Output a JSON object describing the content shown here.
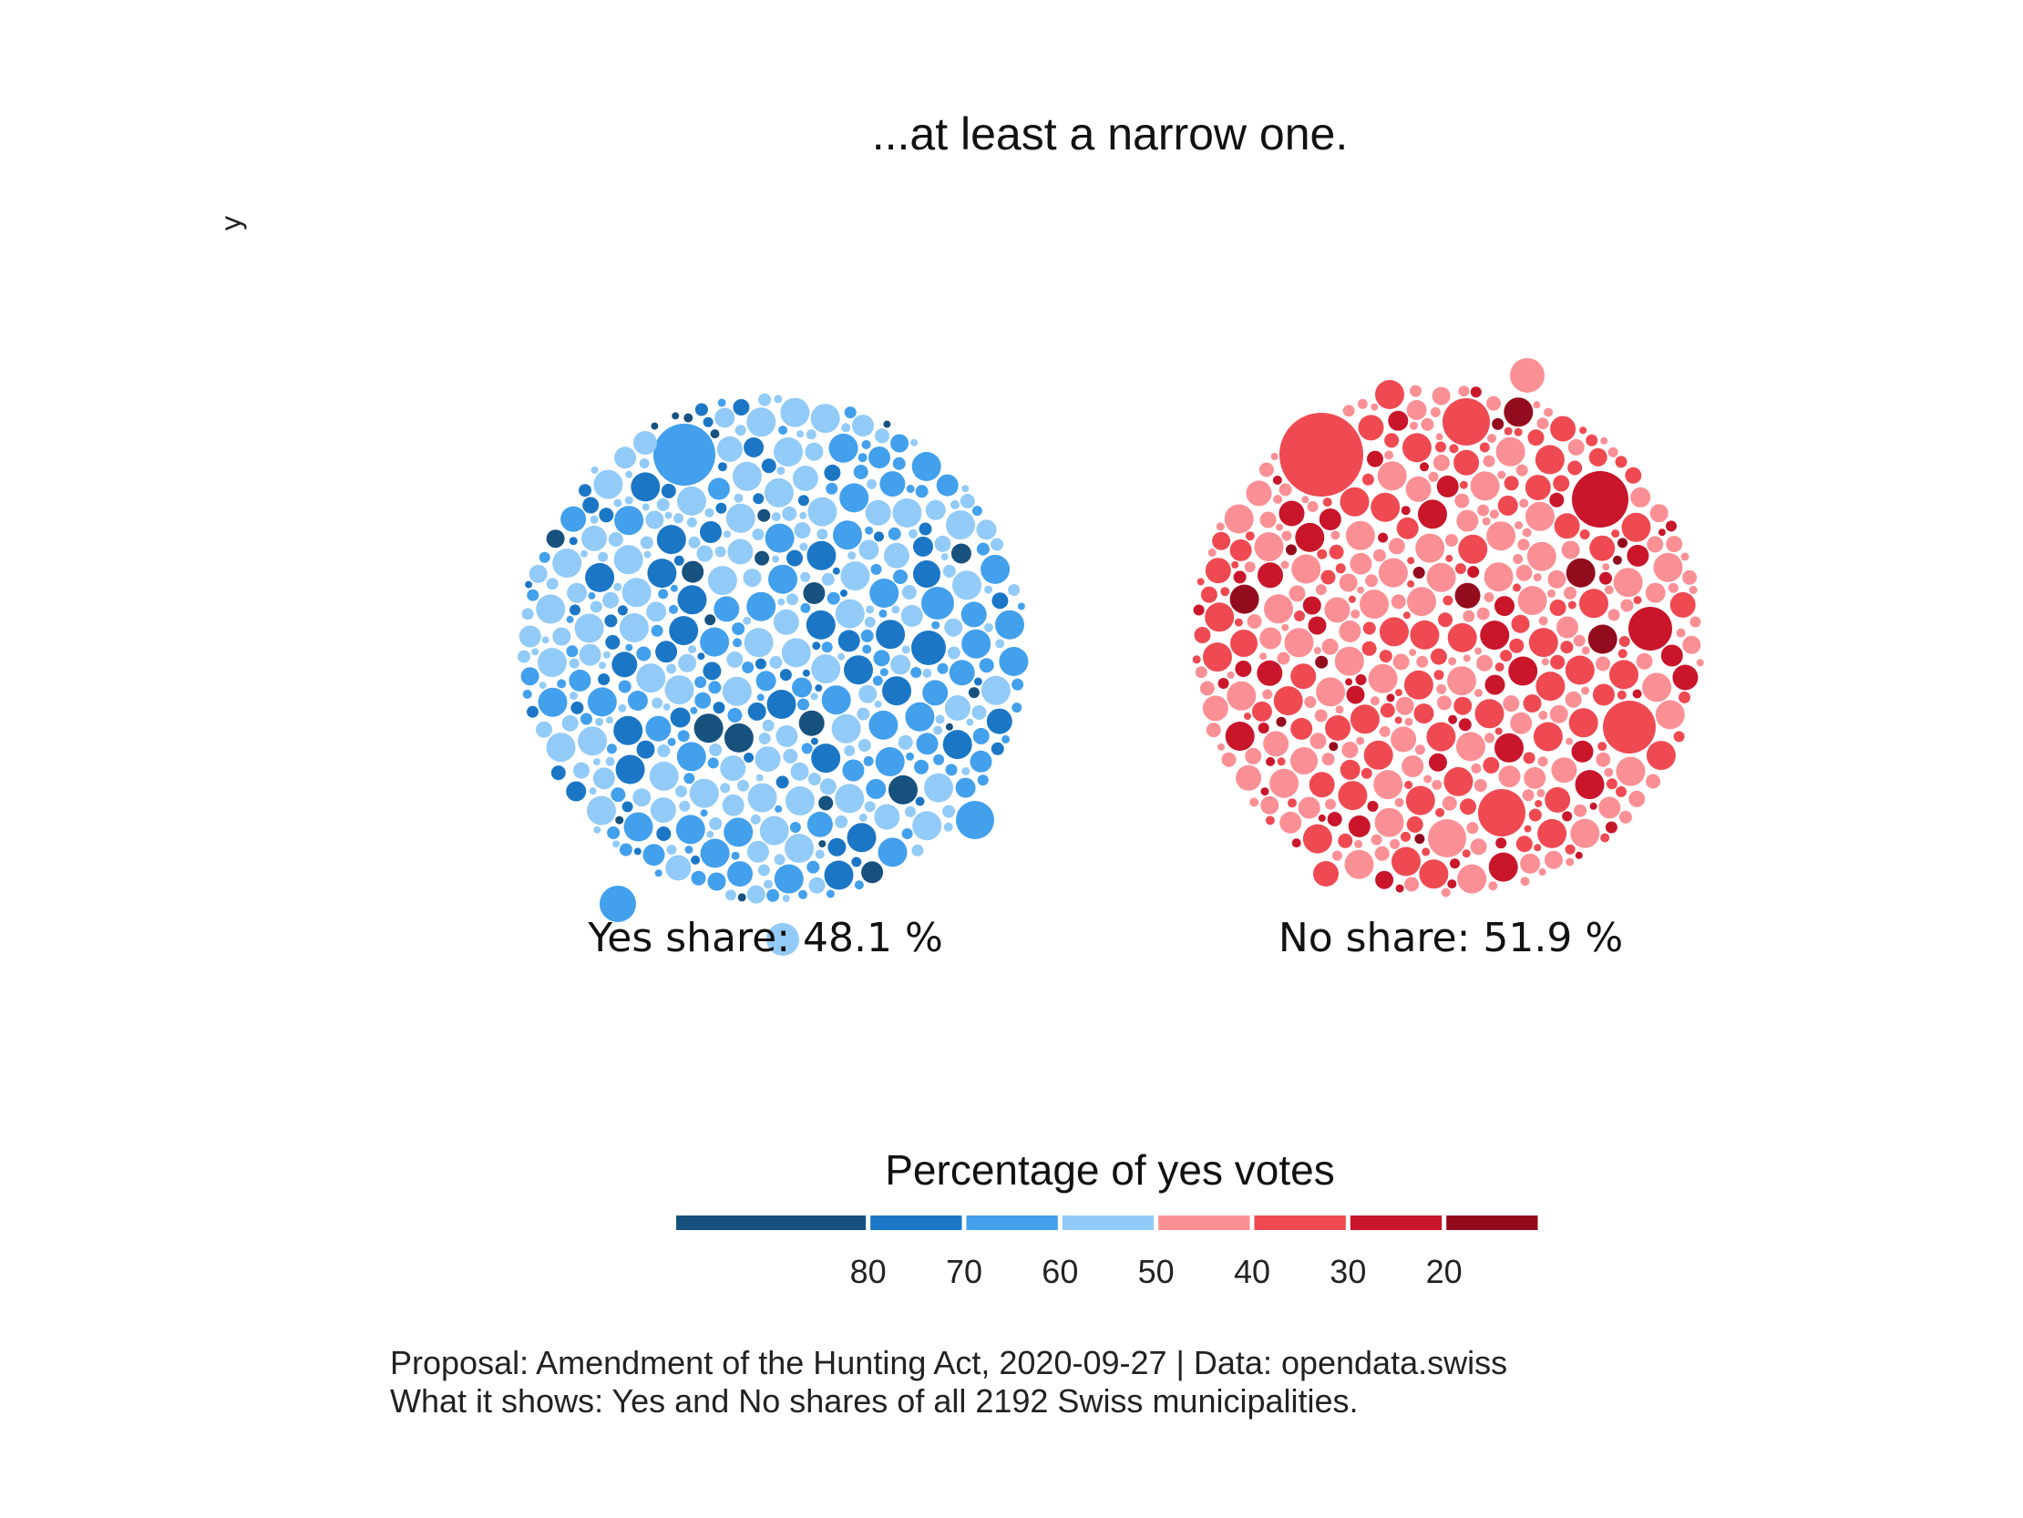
{
  "chart_data": {
    "type": "bubble-pack",
    "title": "...at least a narrow one.",
    "ylabel": "y",
    "groups": [
      {
        "name": "Yes",
        "label": "Yes share: 48.1 %",
        "value": 48.1,
        "color": "#42A0EC"
      },
      {
        "name": "No",
        "label": "No share: 51.9 %",
        "value": 51.9,
        "color": "#EF4A52"
      }
    ],
    "municipality_count": 2192,
    "legend": {
      "title": "Percentage of yes votes",
      "bins": [
        {
          "range": [
            80,
            100
          ],
          "color": "#17527F"
        },
        {
          "range": [
            70,
            80
          ],
          "color": "#1B77C6"
        },
        {
          "range": [
            60,
            70
          ],
          "color": "#42A0EC"
        },
        {
          "range": [
            50,
            60
          ],
          "color": "#92CBF7"
        },
        {
          "range": [
            40,
            50
          ],
          "color": "#FA9095"
        },
        {
          "range": [
            30,
            40
          ],
          "color": "#EF4A52"
        },
        {
          "range": [
            20,
            30
          ],
          "color": "#C9162B"
        },
        {
          "range": [
            0,
            20
          ],
          "color": "#930C1D"
        }
      ],
      "ticks": [
        "80",
        "70",
        "60",
        "50",
        "40",
        "30",
        "20"
      ]
    }
  },
  "caption": {
    "line1": "Proposal: Amendment of the Hunting Act, 2020-09-27 | Data: opendata.swiss",
    "line2": "What it shows: Yes and No shares of all 2192 Swiss municipalities."
  }
}
